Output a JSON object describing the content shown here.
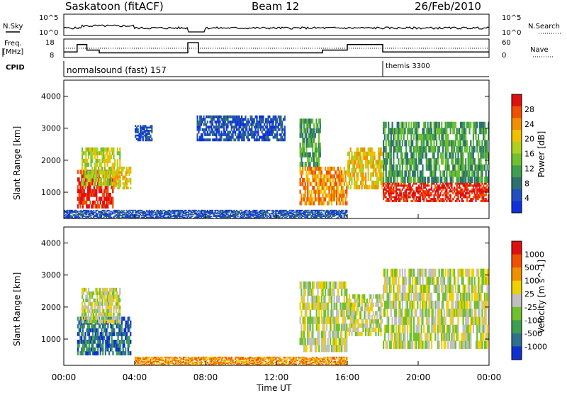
{
  "header": {
    "station": "Saskatoon (fitACF)",
    "beam": "Beam 12",
    "date": "26/Feb/2010"
  },
  "noise_panel": {
    "left_label": "N.Sky",
    "right_label": "N.Search",
    "tick_top": "10^5",
    "tick_bottom": "10^0",
    "sky_top": "10^5",
    "sky_bottom": "10^0"
  },
  "freq_panel": {
    "left_label_1": "Freq.",
    "left_label_2": "[MHz]",
    "right_label": "Nave",
    "left_ticks": [
      "18",
      "8"
    ],
    "right_ticks": [
      "60",
      "0"
    ]
  },
  "cpid_panel": {
    "label": "CPID",
    "programs": [
      {
        "name": "normalsound (fast) 157",
        "start_hour": 0
      },
      {
        "name": "themis 3300",
        "start_hour": 18
      }
    ]
  },
  "x_axis": {
    "title": "Time UT",
    "ticks": [
      "00:00",
      "04:00",
      "08:00",
      "12:00",
      "16:00",
      "20:00",
      "00:00"
    ]
  },
  "power_panel": {
    "ylabel": "Slant Range [km]",
    "yticks": [
      "4000",
      "3000",
      "2000",
      "1000"
    ],
    "colorbar_label": "Power [dB]",
    "colorbar_ticks": [
      "28",
      "24",
      "20",
      "16",
      "12",
      "8",
      "4"
    ],
    "colors": [
      "#1030e0",
      "#2050c0",
      "#2f6f6f",
      "#3f9f4f",
      "#70c030",
      "#b0d020",
      "#f0c000",
      "#f09000",
      "#f05000",
      "#e01010"
    ]
  },
  "velocity_panel": {
    "ylabel": "Slant Range [km]",
    "yticks": [
      "4000",
      "3000",
      "2000",
      "1000"
    ],
    "colorbar_label": "Velocity [m s^-1]",
    "colorbar_ticks": [
      "1000",
      "500",
      "100",
      "25",
      "-25",
      "-100",
      "-500",
      "-1000"
    ],
    "colors": [
      "#1030d0",
      "#2f6f8f",
      "#3f9f4f",
      "#70c030",
      "#c0c0c0",
      "#f0d000",
      "#f09000",
      "#f05000",
      "#e01010"
    ]
  },
  "chart_data": {
    "type": "heatmap",
    "x_range_hours": [
      0,
      24
    ],
    "y_range_km": [
      180,
      4500
    ],
    "frequency_mhz": [
      {
        "from_h": 0.0,
        "to_h": 0.75,
        "value": 11
      },
      {
        "from_h": 0.75,
        "to_h": 1.3,
        "value": 15
      },
      {
        "from_h": 1.3,
        "to_h": 2.0,
        "value": 12
      },
      {
        "from_h": 2.0,
        "to_h": 7.0,
        "value": 10.5
      },
      {
        "from_h": 7.0,
        "to_h": 7.6,
        "value": 16
      },
      {
        "from_h": 7.6,
        "to_h": 14.6,
        "value": 10.5
      },
      {
        "from_h": 14.6,
        "to_h": 16.0,
        "value": 12
      },
      {
        "from_h": 16.0,
        "to_h": 18.0,
        "value": 15
      },
      {
        "from_h": 18.0,
        "to_h": 24.0,
        "value": 11
      }
    ],
    "power_regions": [
      {
        "t0": 0.75,
        "t1": 2.8,
        "r0": 500,
        "r1": 1700,
        "level": 9
      },
      {
        "t0": 1.0,
        "t1": 3.2,
        "r0": 1200,
        "r1": 2400,
        "level": 5
      },
      {
        "t0": 2.8,
        "t1": 3.8,
        "r0": 1100,
        "r1": 1800,
        "level": 6
      },
      {
        "t0": 4.0,
        "t1": 5.0,
        "r0": 2600,
        "r1": 3100,
        "level": 1
      },
      {
        "t0": 7.5,
        "t1": 12.5,
        "r0": 2600,
        "r1": 3400,
        "level": 1
      },
      {
        "t0": 13.3,
        "t1": 16.0,
        "r0": 600,
        "r1": 1800,
        "level": 7
      },
      {
        "t0": 13.3,
        "t1": 14.5,
        "r0": 1800,
        "r1": 3300,
        "level": 3
      },
      {
        "t0": 16.0,
        "t1": 18.0,
        "r0": 1100,
        "r1": 2400,
        "level": 6
      },
      {
        "t0": 18.0,
        "t1": 24.0,
        "r0": 700,
        "r1": 1300,
        "level": 9
      },
      {
        "t0": 18.0,
        "t1": 24.0,
        "r0": 1300,
        "r1": 3200,
        "level": 3
      },
      {
        "t0": 0.0,
        "t1": 16.0,
        "r0": 180,
        "r1": 450,
        "level": 1
      }
    ],
    "velocity_regions": [
      {
        "t0": 0.75,
        "t1": 3.8,
        "r0": 500,
        "r1": 1700,
        "level": 1
      },
      {
        "t0": 1.0,
        "t1": 3.2,
        "r0": 1500,
        "r1": 2600,
        "level": 4
      },
      {
        "t0": 13.3,
        "t1": 16.0,
        "r0": 600,
        "r1": 2800,
        "level": 4
      },
      {
        "t0": 16.0,
        "t1": 18.0,
        "r0": 1100,
        "r1": 2400,
        "level": 4
      },
      {
        "t0": 18.0,
        "t1": 24.0,
        "r0": 700,
        "r1": 3200,
        "level": 4
      },
      {
        "t0": 4.0,
        "t1": 16.0,
        "r0": 180,
        "r1": 450,
        "level": 6
      }
    ]
  }
}
